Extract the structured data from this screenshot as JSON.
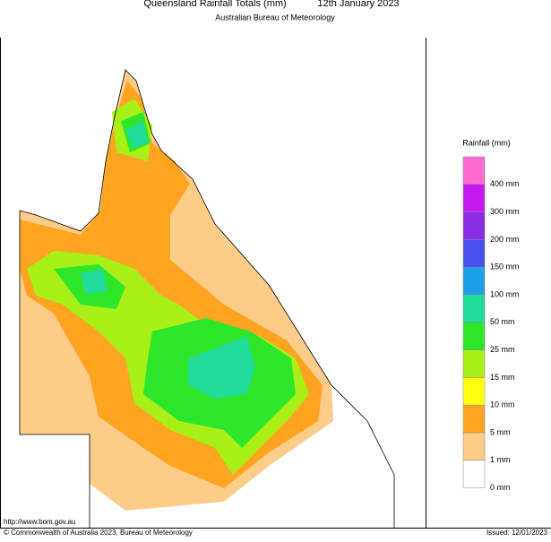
{
  "header": {
    "title": "Queensland Rainfall Totals (mm)",
    "date": "12th January 2023",
    "subtitle": "Australian Bureau of Meteorology"
  },
  "legend": {
    "title": "Rainfall (mm)",
    "levels": [
      {
        "color": "#ff6ad0",
        "label": "400 mm"
      },
      {
        "color": "#c418f0",
        "label": "300 mm"
      },
      {
        "color": "#8a2be6",
        "label": "200 mm"
      },
      {
        "color": "#4a50f0",
        "label": "150 mm"
      },
      {
        "color": "#1ea0e8",
        "label": "100 mm"
      },
      {
        "color": "#22dc9c",
        "label": "50 mm"
      },
      {
        "color": "#2ee62a",
        "label": "25 mm"
      },
      {
        "color": "#a8f018",
        "label": "15 mm"
      },
      {
        "color": "#ffff10",
        "label": "10 mm"
      },
      {
        "color": "#ffa420",
        "label": "5 mm"
      },
      {
        "color": "#fccc88",
        "label": "1 mm"
      },
      {
        "color": "#ffffff",
        "label": "0 mm"
      }
    ]
  },
  "footer": {
    "url": "http://www.bom.gov.au",
    "copyright": "© Commonwealth of Australia 2023, Bureau of Meteorology",
    "issued": "Issued: 12/01/2023"
  }
}
